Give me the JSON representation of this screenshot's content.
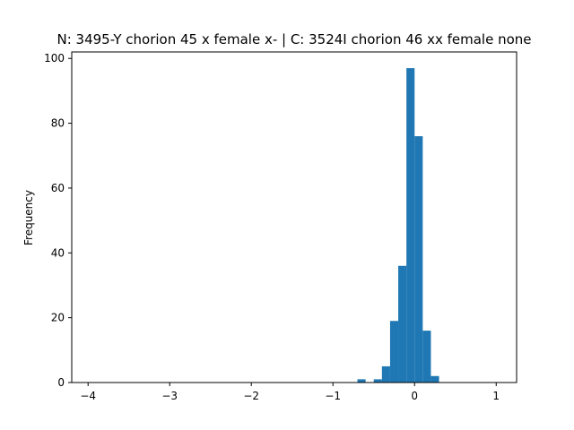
{
  "chart_data": {
    "type": "bar",
    "title": "N: 3495-Y chorion 45 x female x- | C: 3524I chorion 46 xx female none",
    "xlabel": "",
    "ylabel": "Frequency",
    "xlim": [
      -4.2,
      1.25
    ],
    "ylim": [
      0,
      102
    ],
    "xticks": [
      -4,
      -3,
      -2,
      -1,
      0,
      1
    ],
    "xtick_labels": [
      "−4",
      "−3",
      "−2",
      "−1",
      "0",
      "1"
    ],
    "yticks": [
      0,
      20,
      40,
      60,
      80,
      100
    ],
    "ytick_labels": [
      "0",
      "20",
      "40",
      "60",
      "80",
      "100"
    ],
    "bin_width": 0.1,
    "bins": [
      {
        "x0": -0.7,
        "x1": -0.6,
        "count": 1
      },
      {
        "x0": -0.5,
        "x1": -0.4,
        "count": 1
      },
      {
        "x0": -0.4,
        "x1": -0.3,
        "count": 5
      },
      {
        "x0": -0.3,
        "x1": -0.2,
        "count": 19
      },
      {
        "x0": -0.2,
        "x1": -0.1,
        "count": 36
      },
      {
        "x0": -0.1,
        "x1": 0.0,
        "count": 97
      },
      {
        "x0": 0.0,
        "x1": 0.1,
        "count": 76
      },
      {
        "x0": 0.1,
        "x1": 0.2,
        "count": 16
      },
      {
        "x0": 0.2,
        "x1": 0.3,
        "count": 2
      }
    ],
    "bar_color": "#1f77b4",
    "grid": false,
    "legend": "none"
  }
}
